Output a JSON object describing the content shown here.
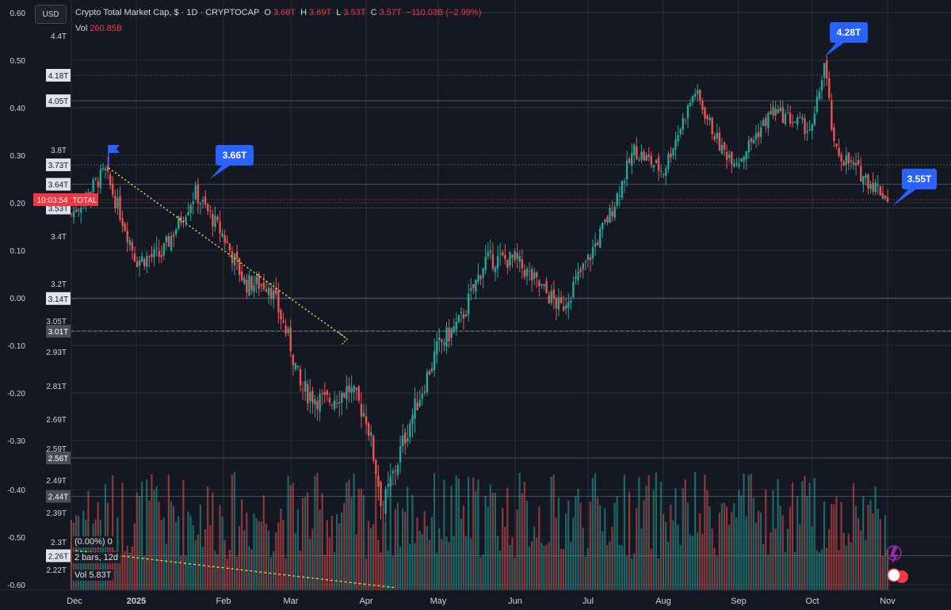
{
  "header": {
    "symbol": "Crypto Total Market Cap, $ · 1D · CRYPTOCAP",
    "open_label": "O",
    "open": "3.68T",
    "high_label": "H",
    "high": "3.69T",
    "low_label": "L",
    "low": "3.53T",
    "close_label": "C",
    "close": "3.57T",
    "change": "−110.03B (−2.99%)",
    "vol_label": "Vol",
    "vol_value": "260.85B"
  },
  "currency_button": "USD",
  "countdown": "10:03:54",
  "total_tag": "TOTAL",
  "overlay": {
    "pct": "(0.00%) 0",
    "bars": "2 bars, 12d",
    "vol": "Vol 5.83T"
  },
  "chart_data": {
    "type": "candlestick",
    "x_ticks": [
      "Dec",
      "2025",
      "Feb",
      "Mar",
      "Apr",
      "May",
      "Jun",
      "Jul",
      "Aug",
      "Sep",
      "Oct",
      "Nov"
    ],
    "price_axis_ticks": [
      "4.4T",
      "3.8T",
      "3.4T",
      "3.2T",
      "3.05T",
      "2.93T",
      "2.81T",
      "2.69T",
      "2.59T",
      "2.49T",
      "2.39T",
      "2.3T",
      "2.22T"
    ],
    "price_axis_tags": [
      {
        "label": "4.18T",
        "value": 4.18
      },
      {
        "label": "4.05T",
        "value": 4.05
      },
      {
        "label": "3.73T",
        "value": 3.73
      },
      {
        "label": "3.64T",
        "value": 3.64
      },
      {
        "label": "3.53T",
        "value": 3.53
      },
      {
        "label": "3.14T",
        "value": 3.14
      },
      {
        "label": "3.01T",
        "value": 3.01
      },
      {
        "label": "2.56T",
        "value": 2.56
      },
      {
        "label": "2.44T",
        "value": 2.44
      },
      {
        "label": "2.26T",
        "value": 2.26
      }
    ],
    "left_axis_ticks": [
      "0.60",
      "0.50",
      "0.40",
      "0.30",
      "0.20",
      "0.10",
      "0.00",
      "-0.10",
      "-0.20",
      "-0.30",
      "-0.40",
      "-0.50",
      "-0.60"
    ],
    "callouts": [
      "3.66T",
      "4.28T",
      "3.55T"
    ],
    "close_path": [
      [
        "Dec 1",
        3.5
      ],
      [
        "Dec 17",
        3.7
      ],
      [
        "Jan 1",
        3.3
      ],
      [
        "Jan 10",
        3.32
      ],
      [
        "Jan 22",
        3.6
      ],
      [
        "Feb 1",
        3.4
      ],
      [
        "Feb 10",
        3.2
      ],
      [
        "Feb 20",
        3.2
      ],
      [
        "Mar 1",
        2.95
      ],
      [
        "Mar 5",
        2.8
      ],
      [
        "Mar 15",
        2.75
      ],
      [
        "Mar 25",
        2.8
      ],
      [
        "Apr 1",
        2.7
      ],
      [
        "Apr 8",
        2.4
      ],
      [
        "Apr 20",
        2.7
      ],
      [
        "May 1",
        2.95
      ],
      [
        "May 10",
        3.05
      ],
      [
        "May 20",
        3.3
      ],
      [
        "Jun 1",
        3.3
      ],
      [
        "Jun 10",
        3.2
      ],
      [
        "Jun 20",
        3.1
      ],
      [
        "Jul 1",
        3.3
      ],
      [
        "Jul 10",
        3.5
      ],
      [
        "Jul 20",
        3.8
      ],
      [
        "Aug 1",
        3.7
      ],
      [
        "Aug 14",
        4.1
      ],
      [
        "Aug 25",
        3.8
      ],
      [
        "Sep 1",
        3.75
      ],
      [
        "Sep 15",
        4.0
      ],
      [
        "Oct 1",
        3.9
      ],
      [
        "Oct 6",
        4.25
      ],
      [
        "Oct 10",
        3.8
      ],
      [
        "Oct 20",
        3.7
      ],
      [
        "Oct 25",
        3.65
      ],
      [
        "Nov 2",
        3.57
      ]
    ]
  },
  "colors": {
    "up": "#26a69a",
    "down": "#ef5350",
    "callout": "#2962ff",
    "bg": "#141823",
    "grid": "#2a2e39"
  }
}
